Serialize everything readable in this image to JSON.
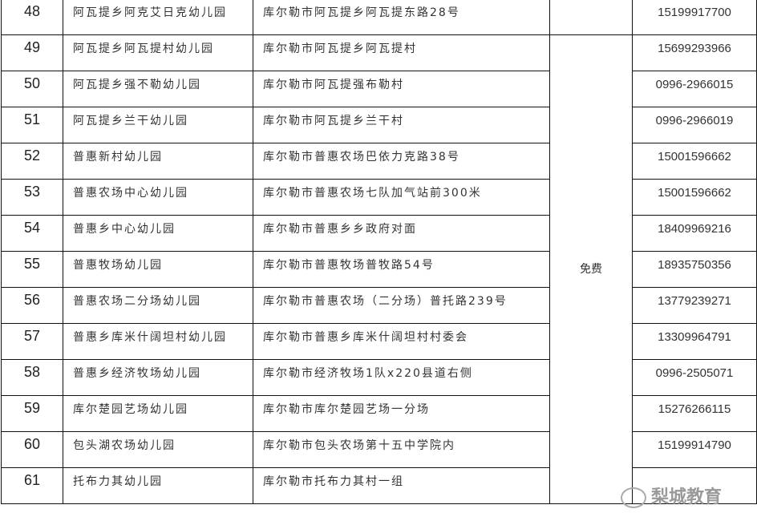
{
  "table": {
    "rows": [
      {
        "num": "48",
        "name": "阿瓦提乡阿克艾日克幼儿园",
        "address": "库尔勒市阿瓦提乡阿瓦提东路28号",
        "phone": "15199917700"
      },
      {
        "num": "49",
        "name": "阿瓦提乡阿瓦提村幼儿园",
        "address": "库尔勒市阿瓦提乡阿瓦提村",
        "phone": "15699293966"
      },
      {
        "num": "50",
        "name": "阿瓦提乡强不勒幼儿园",
        "address": "库尔勒市阿瓦提强布勒村",
        "phone": "0996-2966015"
      },
      {
        "num": "51",
        "name": "阿瓦提乡兰干幼儿园",
        "address": "库尔勒市阿瓦提乡兰干村",
        "phone": "0996-2966019"
      },
      {
        "num": "52",
        "name": "普惠新村幼儿园",
        "address": "库尔勒市普惠农场巴依力克路38号",
        "phone": "15001596662"
      },
      {
        "num": "53",
        "name": "普惠农场中心幼儿园",
        "address": "库尔勒市普惠农场七队加气站前300米",
        "phone": "15001596662"
      },
      {
        "num": "54",
        "name": "普惠乡中心幼儿园",
        "address": "库尔勒市普惠乡乡政府对面",
        "phone": "18409969216"
      },
      {
        "num": "55",
        "name": "普惠牧场幼儿园",
        "address": "库尔勒市普惠牧场普牧路54号",
        "phone": "18935750356"
      },
      {
        "num": "56",
        "name": "普惠农场二分场幼儿园",
        "address": "库尔勒市普惠农场（二分场）普托路239号",
        "phone": "13779239271"
      },
      {
        "num": "57",
        "name": "普惠乡库米什阔坦村幼儿园",
        "address": "库尔勒市普惠乡库米什阔坦村村委会",
        "phone": "13309964791"
      },
      {
        "num": "58",
        "name": "普惠乡经济牧场幼儿园",
        "address": "库尔勒市经济牧场1队x220县道右侧",
        "phone": "0996-2505071"
      },
      {
        "num": "59",
        "name": "库尔楚园艺场幼儿园",
        "address": "库尔勒市库尔楚园艺场一分场",
        "phone": "15276266115"
      },
      {
        "num": "60",
        "name": "包头湖农场幼儿园",
        "address": "库尔勒市包头农场第十五中学院内",
        "phone": "15199914790"
      },
      {
        "num": "61",
        "name": "托布力其幼儿园",
        "address": "库尔勒市托布力其村一组",
        "phone": ""
      }
    ],
    "fee_merged": "免费"
  },
  "watermark": {
    "text": "梨城教育",
    "icon": "wechat-icon"
  }
}
